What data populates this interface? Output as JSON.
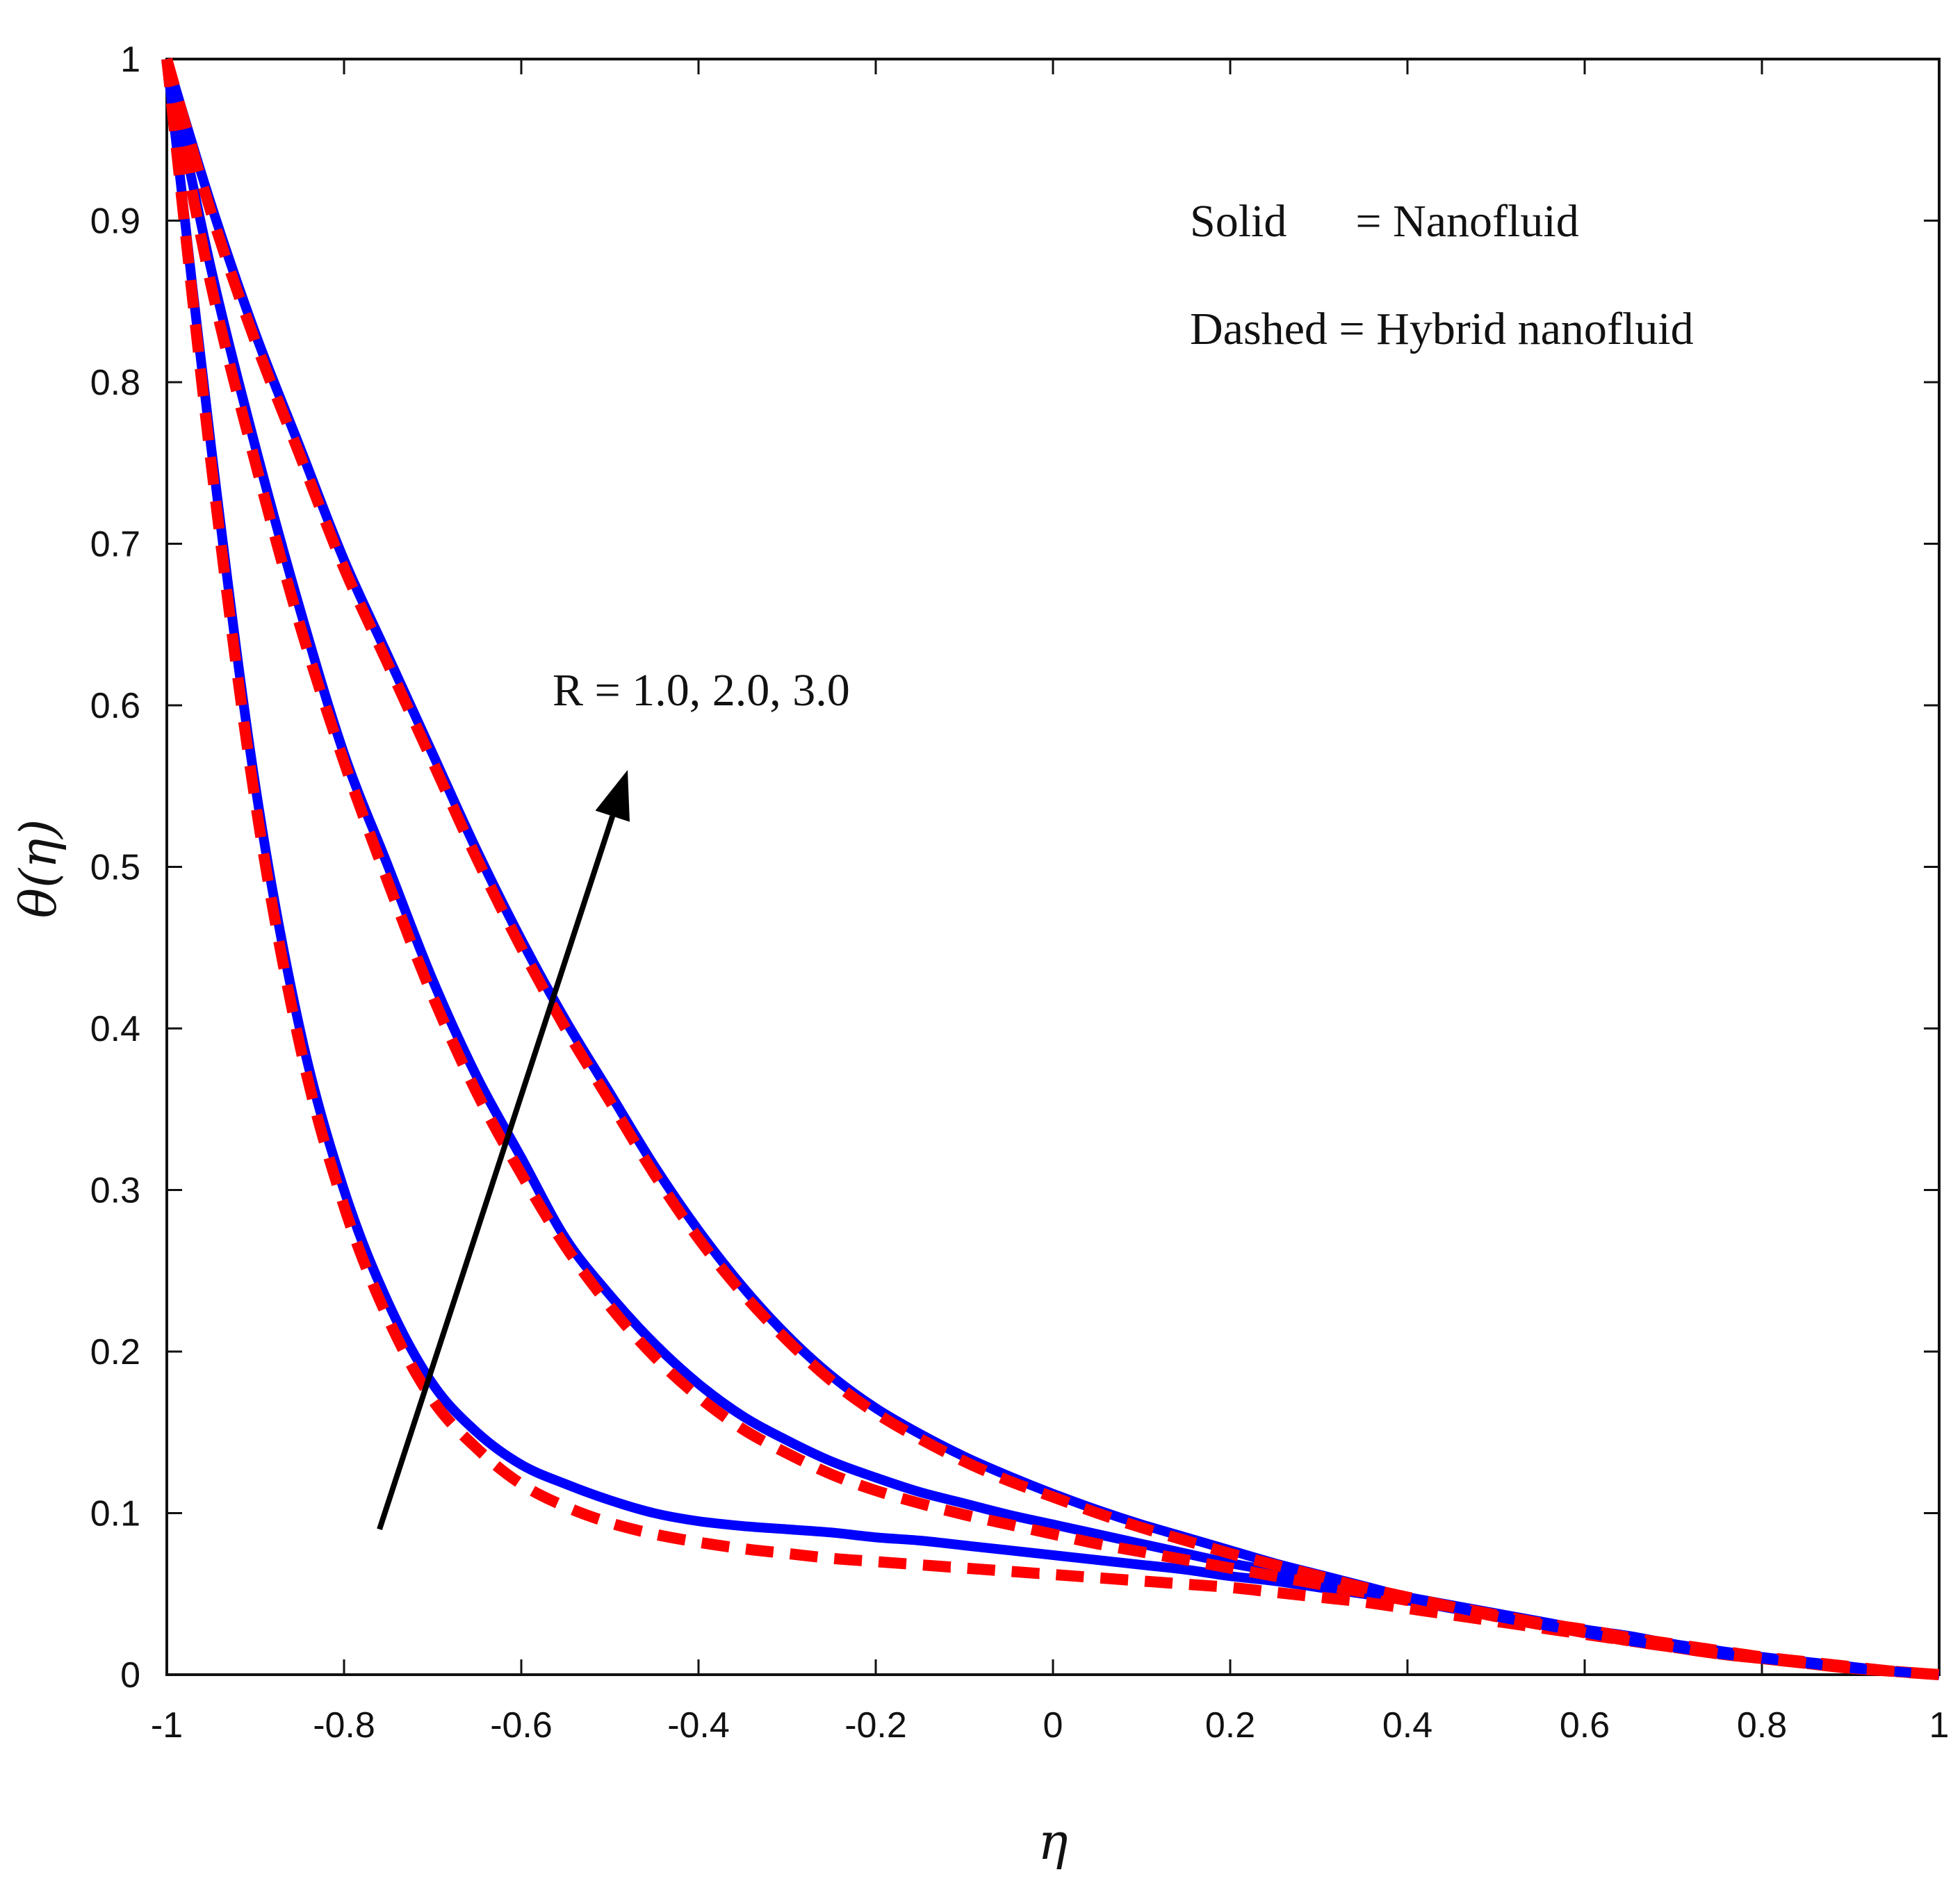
{
  "chart_data": {
    "type": "line",
    "xlabel": "η",
    "ylabel": "θ(η)",
    "xlim": [
      -1,
      1
    ],
    "ylim": [
      0,
      1
    ],
    "xticks": [
      -1,
      -0.8,
      -0.6,
      -0.4,
      -0.2,
      0,
      0.2,
      0.4,
      0.6,
      0.8,
      1
    ],
    "xtick_labels": [
      "-1",
      "-0.8",
      "-0.6",
      "-0.4",
      "-0.2",
      "0",
      "0.2",
      "0.4",
      "0.6",
      "0.8",
      "1"
    ],
    "yticks": [
      0,
      0.1,
      0.2,
      0.3,
      0.4,
      0.5,
      0.6,
      0.7,
      0.8,
      0.9,
      1
    ],
    "ytick_labels": [
      "0",
      "0.1",
      "0.2",
      "0.3",
      "0.4",
      "0.5",
      "0.6",
      "0.7",
      "0.8",
      "0.9",
      "1"
    ],
    "grid": false,
    "annotations": {
      "line1": "Solid      = Nanofluid",
      "line2": "Dashed = Hybrid nanofluid",
      "arrow_label": "R = 1.0, 2.0, 3.0"
    },
    "colors": {
      "solid": "#0000ff",
      "dashed": "#ff0000",
      "arrow": "#000000"
    },
    "x": [
      -1.0,
      -0.95,
      -0.9,
      -0.85,
      -0.8,
      -0.75,
      -0.7,
      -0.65,
      -0.6,
      -0.55,
      -0.5,
      -0.45,
      -0.4,
      -0.35,
      -0.3,
      -0.25,
      -0.2,
      -0.15,
      -0.1,
      -0.05,
      0.0,
      0.05,
      0.1,
      0.15,
      0.2,
      0.25,
      0.3,
      0.35,
      0.4,
      0.45,
      0.5,
      0.55,
      0.6,
      0.65,
      0.7,
      0.75,
      0.8,
      0.85,
      0.9,
      0.95,
      1.0
    ],
    "series": [
      {
        "style": "solid",
        "values": [
          1.0,
          0.76,
          0.55,
          0.4,
          0.3,
          0.23,
          0.18,
          0.15,
          0.13,
          0.118,
          0.108,
          0.1,
          0.095,
          0.092,
          0.09,
          0.088,
          0.085,
          0.083,
          0.08,
          0.077,
          0.074,
          0.071,
          0.068,
          0.065,
          0.061,
          0.058,
          0.054,
          0.05,
          0.046,
          0.041,
          0.036,
          0.032,
          0.027,
          0.022,
          0.018,
          0.014,
          0.01,
          0.007,
          0.004,
          0.002,
          0.0
        ]
      },
      {
        "style": "dashed",
        "values": [
          1.0,
          0.75,
          0.54,
          0.39,
          0.29,
          0.22,
          0.17,
          0.14,
          0.118,
          0.104,
          0.094,
          0.087,
          0.082,
          0.078,
          0.075,
          0.072,
          0.07,
          0.068,
          0.066,
          0.064,
          0.062,
          0.06,
          0.058,
          0.056,
          0.054,
          0.051,
          0.048,
          0.045,
          0.041,
          0.037,
          0.033,
          0.029,
          0.025,
          0.021,
          0.017,
          0.013,
          0.01,
          0.007,
          0.004,
          0.002,
          0.0
        ]
      },
      {
        "style": "solid",
        "values": [
          1.0,
          0.87,
          0.76,
          0.66,
          0.57,
          0.5,
          0.43,
          0.37,
          0.32,
          0.27,
          0.235,
          0.205,
          0.18,
          0.16,
          0.145,
          0.132,
          0.122,
          0.113,
          0.106,
          0.099,
          0.093,
          0.087,
          0.081,
          0.075,
          0.069,
          0.064,
          0.058,
          0.053,
          0.048,
          0.043,
          0.038,
          0.033,
          0.028,
          0.024,
          0.019,
          0.015,
          0.011,
          0.008,
          0.005,
          0.002,
          0.0
        ]
      },
      {
        "style": "dashed",
        "values": [
          1.0,
          0.86,
          0.75,
          0.65,
          0.565,
          0.49,
          0.42,
          0.36,
          0.31,
          0.265,
          0.228,
          0.197,
          0.172,
          0.152,
          0.137,
          0.124,
          0.114,
          0.106,
          0.099,
          0.093,
          0.087,
          0.081,
          0.076,
          0.071,
          0.066,
          0.061,
          0.056,
          0.051,
          0.046,
          0.042,
          0.037,
          0.032,
          0.028,
          0.023,
          0.019,
          0.015,
          0.011,
          0.008,
          0.005,
          0.002,
          0.0
        ]
      },
      {
        "style": "solid",
        "values": [
          1.0,
          0.91,
          0.83,
          0.76,
          0.69,
          0.63,
          0.57,
          0.51,
          0.455,
          0.405,
          0.36,
          0.315,
          0.275,
          0.24,
          0.21,
          0.185,
          0.165,
          0.149,
          0.135,
          0.123,
          0.112,
          0.102,
          0.093,
          0.085,
          0.077,
          0.069,
          0.062,
          0.055,
          0.048,
          0.042,
          0.036,
          0.031,
          0.026,
          0.021,
          0.017,
          0.013,
          0.01,
          0.007,
          0.004,
          0.002,
          0.0
        ]
      },
      {
        "style": "dashed",
        "values": [
          1.0,
          0.905,
          0.825,
          0.755,
          0.685,
          0.625,
          0.565,
          0.505,
          0.45,
          0.4,
          0.355,
          0.31,
          0.27,
          0.236,
          0.207,
          0.182,
          0.162,
          0.146,
          0.132,
          0.12,
          0.11,
          0.1,
          0.091,
          0.083,
          0.075,
          0.068,
          0.061,
          0.054,
          0.048,
          0.042,
          0.036,
          0.031,
          0.026,
          0.021,
          0.017,
          0.013,
          0.01,
          0.007,
          0.004,
          0.002,
          0.0
        ]
      }
    ],
    "arrow": {
      "from": [
        -0.76,
        0.09
      ],
      "to": [
        -0.48,
        0.56
      ]
    }
  }
}
